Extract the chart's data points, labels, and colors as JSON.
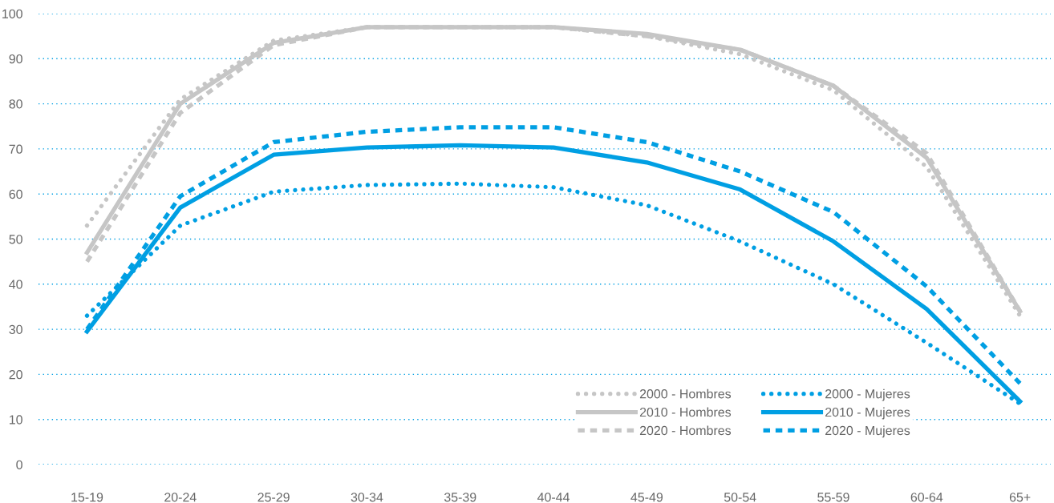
{
  "chart_data": {
    "type": "line",
    "categories": [
      "15-19",
      "20-24",
      "25-29",
      "30-34",
      "35-39",
      "40-44",
      "45-49",
      "50-54",
      "55-59",
      "60-64",
      "65+"
    ],
    "series": [
      {
        "name": "2000 - Hombres",
        "color": "#c6c6c6",
        "line_style": "dotted",
        "values": [
          53,
          81,
          94,
          97,
          97,
          97,
          95,
          91,
          83,
          66,
          33
        ]
      },
      {
        "name": "2010 - Hombres",
        "color": "#c6c6c6",
        "line_style": "solid",
        "values": [
          47,
          80,
          93.5,
          97,
          97,
          97,
          95.5,
          92,
          84,
          68,
          34
        ]
      },
      {
        "name": "2020 - Hombres",
        "color": "#c6c6c6",
        "line_style": "dashed",
        "values": [
          45,
          78,
          93,
          97,
          97,
          97,
          95,
          92,
          84,
          69,
          34
        ]
      },
      {
        "name": "2000 - Mujeres",
        "color": "#009fe3",
        "line_style": "dotted",
        "values": [
          33,
          53,
          60.5,
          62,
          62.3,
          61.5,
          57.5,
          49.5,
          40,
          27,
          13.5
        ]
      },
      {
        "name": "2010 - Mujeres",
        "color": "#009fe3",
        "line_style": "solid",
        "values": [
          29.5,
          57,
          68.7,
          70.3,
          70.8,
          70.3,
          67,
          61,
          49.5,
          34.5,
          14
        ]
      },
      {
        "name": "2020 - Mujeres",
        "color": "#009fe3",
        "line_style": "dashed",
        "values": [
          30,
          59.5,
          71.5,
          73.8,
          74.8,
          74.8,
          71.5,
          65,
          56,
          39.5,
          18
        ]
      }
    ],
    "ylim": [
      0,
      100
    ],
    "yticks": [
      0,
      10,
      20,
      30,
      40,
      50,
      60,
      70,
      80,
      90,
      100
    ],
    "grid": "y",
    "legend": "bottom right",
    "marker": "none"
  }
}
